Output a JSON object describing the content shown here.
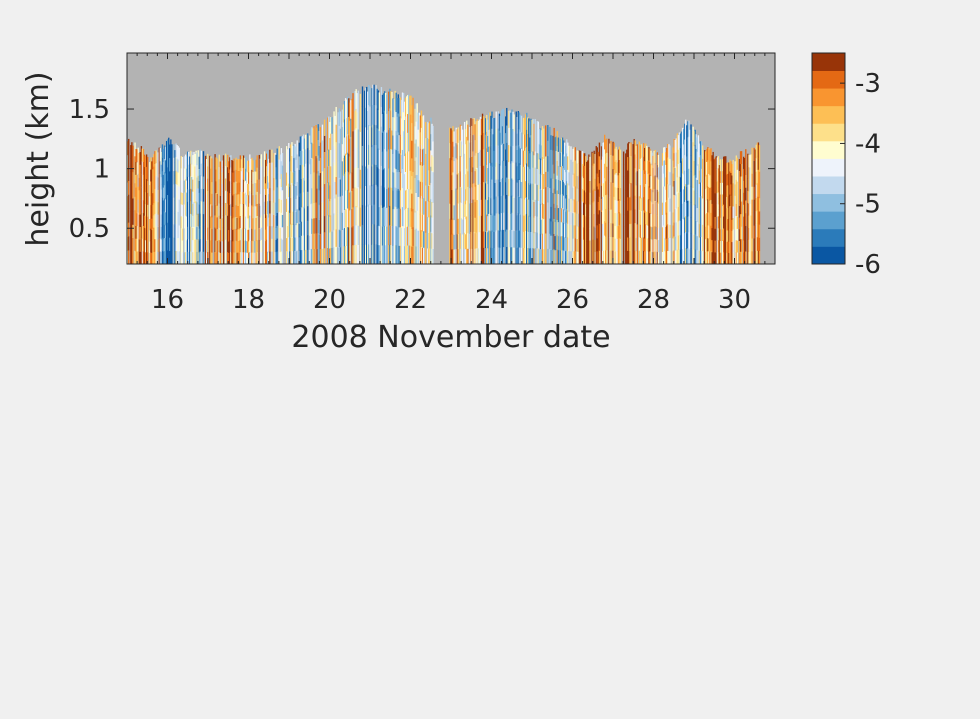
{
  "chart_data": {
    "type": "heatmap",
    "title": "",
    "xlabel": "2008 November date",
    "ylabel": "height (km)",
    "xlim": [
      15,
      31
    ],
    "ylim": [
      0.2,
      1.97
    ],
    "x_ticks": [
      16,
      18,
      20,
      22,
      24,
      26,
      28,
      30
    ],
    "y_ticks": [
      0.5,
      1,
      1.5
    ],
    "x_tick_labels": [
      "16",
      "18",
      "20",
      "22",
      "24",
      "26",
      "28",
      "30"
    ],
    "y_tick_labels": [
      "0.5",
      "1",
      "1.5"
    ],
    "grid": false,
    "missing_color": "#b3b3b3",
    "colorbar": {
      "limits": [
        -6,
        -2.5
      ],
      "ticks": [
        -6,
        -5,
        -4,
        -3
      ],
      "tick_labels": [
        "-6",
        "-5",
        "-4",
        "-3"
      ],
      "colors": [
        "#0a57a3",
        "#2b7bba",
        "#5ba0cf",
        "#8fbfe0",
        "#c2d9ee",
        "#eef3fb",
        "#fffdd0",
        "#fde08a",
        "#fdbf55",
        "#f99530",
        "#e46914",
        "#983408"
      ]
    },
    "top_height_profile": {
      "dates": [
        15.0,
        15.3,
        15.6,
        16.0,
        16.4,
        16.8,
        17.2,
        17.6,
        18.0,
        18.4,
        18.8,
        19.2,
        19.6,
        20.0,
        20.4,
        20.8,
        21.2,
        21.6,
        22.0,
        22.4,
        22.6
      ],
      "top_km": [
        1.27,
        1.2,
        1.12,
        1.28,
        1.15,
        1.17,
        1.13,
        1.13,
        1.13,
        1.15,
        1.2,
        1.27,
        1.36,
        1.47,
        1.6,
        1.72,
        1.7,
        1.66,
        1.62,
        1.45,
        1.4
      ]
    },
    "top_height_profile_2": {
      "dates": [
        22.9,
        23.2,
        23.6,
        24.0,
        24.4,
        24.8,
        25.2,
        25.6,
        26.0,
        26.4,
        26.8,
        27.2,
        27.6,
        28.0,
        28.4,
        28.8,
        29.2,
        29.6,
        30.0,
        30.4,
        30.6
      ],
      "top_km": [
        1.35,
        1.37,
        1.45,
        1.5,
        1.52,
        1.5,
        1.4,
        1.33,
        1.22,
        1.12,
        1.3,
        1.18,
        1.28,
        1.17,
        1.22,
        1.44,
        1.25,
        1.1,
        1.12,
        1.2,
        1.24
      ]
    },
    "data_gaps": [
      {
        "start": 22.55,
        "end": 22.93
      }
    ],
    "dominant_value_by_segment": [
      {
        "start": 15.0,
        "end": 15.8,
        "value": -3.1
      },
      {
        "start": 15.8,
        "end": 16.3,
        "value": -5.4
      },
      {
        "start": 16.3,
        "end": 16.9,
        "value": -5.0
      },
      {
        "start": 16.9,
        "end": 17.6,
        "value": -3.3
      },
      {
        "start": 17.6,
        "end": 18.6,
        "value": -3.7
      },
      {
        "start": 18.6,
        "end": 19.6,
        "value": -4.6
      },
      {
        "start": 19.6,
        "end": 20.6,
        "value": -4.0
      },
      {
        "start": 20.6,
        "end": 21.4,
        "value": -5.0
      },
      {
        "start": 21.4,
        "end": 22.55,
        "value": -4.3
      },
      {
        "start": 22.93,
        "end": 23.8,
        "value": -3.5
      },
      {
        "start": 23.8,
        "end": 25.2,
        "value": -4.7
      },
      {
        "start": 25.2,
        "end": 26.0,
        "value": -4.3
      },
      {
        "start": 26.0,
        "end": 27.6,
        "value": -3.2
      },
      {
        "start": 27.6,
        "end": 28.6,
        "value": -3.6
      },
      {
        "start": 28.6,
        "end": 29.2,
        "value": -5.0
      },
      {
        "start": 29.2,
        "end": 30.6,
        "value": -3.2
      }
    ]
  }
}
